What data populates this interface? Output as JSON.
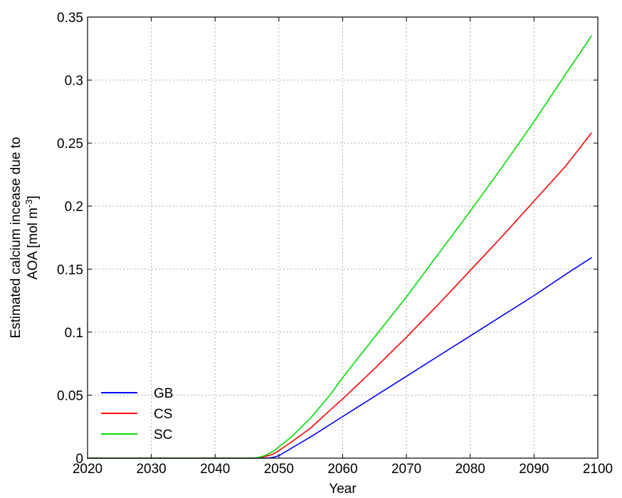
{
  "chart_data": {
    "type": "line",
    "title": "",
    "xlabel": "Year",
    "ylabel_line1": "Estimated calcium incease due to",
    "ylabel_line2": "AOA [mol m",
    "ylabel_sup": "-3",
    "ylabel_end": "]",
    "xlim": [
      2020,
      2100
    ],
    "ylim": [
      0,
      0.35
    ],
    "grid": true,
    "legend_position": "bottom-left",
    "x_ticks": [
      2020,
      2030,
      2040,
      2050,
      2060,
      2070,
      2080,
      2090,
      2100
    ],
    "x_tick_labels": [
      "2020",
      "2030",
      "2040",
      "2050",
      "2060",
      "2070",
      "2080",
      "2090",
      "2100"
    ],
    "y_ticks": [
      0,
      0.05,
      0.1,
      0.15,
      0.2,
      0.25,
      0.3,
      0.35
    ],
    "y_tick_labels": [
      "0",
      "0.05",
      "0.1",
      "0.15",
      "0.2",
      "0.25",
      "0.3",
      "0.35"
    ],
    "series": [
      {
        "name": "GB",
        "color": "#0000ff",
        "x": [
          2020,
          2040,
          2048,
          2049,
          2050,
          2052,
          2055,
          2060,
          2065,
          2070,
          2075,
          2080,
          2085,
          2090,
          2095,
          2099
        ],
        "y": [
          0,
          0,
          0,
          0.0005,
          0.002,
          0.008,
          0.017,
          0.033,
          0.049,
          0.065,
          0.081,
          0.097,
          0.113,
          0.129,
          0.146,
          0.159
        ]
      },
      {
        "name": "CS",
        "color": "#ff0000",
        "x": [
          2020,
          2040,
          2046,
          2047,
          2048,
          2049,
          2050,
          2052,
          2055,
          2058,
          2060,
          2065,
          2070,
          2075,
          2080,
          2085,
          2090,
          2095,
          2099
        ],
        "y": [
          0,
          0,
          0,
          0.0005,
          0.0015,
          0.003,
          0.006,
          0.013,
          0.024,
          0.038,
          0.047,
          0.071,
          0.096,
          0.122,
          0.149,
          0.176,
          0.204,
          0.232,
          0.258
        ]
      },
      {
        "name": "SC",
        "color": "#00dd00",
        "x": [
          2020,
          2040,
          2046,
          2047,
          2048,
          2049,
          2050,
          2052,
          2055,
          2058,
          2060,
          2065,
          2070,
          2075,
          2080,
          2085,
          2090,
          2095,
          2099
        ],
        "y": [
          0,
          0,
          0,
          0.0008,
          0.0025,
          0.005,
          0.009,
          0.017,
          0.032,
          0.05,
          0.064,
          0.096,
          0.128,
          0.162,
          0.196,
          0.231,
          0.267,
          0.305,
          0.335
        ]
      }
    ]
  }
}
